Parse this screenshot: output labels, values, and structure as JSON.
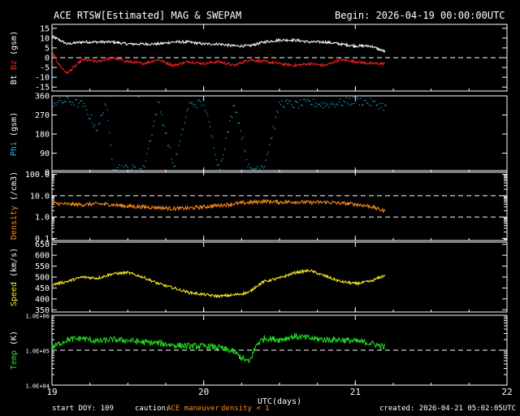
{
  "header": {
    "title": "ACE RTSW[Estimated] MAG & SWEPAM",
    "begin": "Begin: 2026-04-19 00:00:00UTC"
  },
  "footer": {
    "start_doy": "start DOY: 109",
    "caution_label": "caution:",
    "maneuver": "ACE maneuver",
    "density_note": "density < 1",
    "created": "created: 2026-04-21 05:02:05UTC"
  },
  "colors": {
    "bt": "#ffffff",
    "bz": "#ff2020",
    "phi": "#20b8e8",
    "density": "#ff8c1a",
    "speed": "#ffee22",
    "temp": "#22dd22",
    "frame": "#ffffff"
  },
  "chart_data": [
    {
      "type": "line",
      "title": "ACE RTSW[Estimated] MAG & SWEPAM",
      "ylabel": "Bt Bz (gsm)",
      "ylim": [
        -17,
        17
      ],
      "yticks": [
        15,
        10,
        5,
        0,
        -5,
        -10,
        -15
      ],
      "ytick_labels": [
        "15",
        "10",
        "5",
        "0",
        "-5",
        "-10",
        "-15"
      ],
      "ref_lines": [
        0
      ],
      "series": [
        {
          "name": "Bt",
          "x": [
            19.0,
            19.05,
            19.1,
            19.2,
            19.3,
            19.4,
            19.5,
            19.6,
            19.7,
            19.8,
            19.9,
            20.0,
            20.1,
            20.2,
            20.3,
            20.4,
            20.5,
            20.6,
            20.7,
            20.8,
            20.9,
            21.0,
            21.1,
            21.2
          ],
          "values": [
            11,
            9,
            7,
            8,
            8,
            8,
            7,
            7,
            7,
            8,
            8,
            7,
            7,
            6,
            6,
            8,
            9,
            9,
            8,
            8,
            7,
            6,
            6,
            3
          ]
        },
        {
          "name": "Bz",
          "x": [
            19.0,
            19.05,
            19.1,
            19.2,
            19.3,
            19.4,
            19.5,
            19.6,
            19.7,
            19.8,
            19.9,
            20.0,
            20.1,
            20.2,
            20.3,
            20.4,
            20.5,
            20.6,
            20.7,
            20.8,
            20.9,
            21.0,
            21.1,
            21.2
          ],
          "values": [
            3,
            -4,
            -8,
            -1,
            -2,
            0,
            -2,
            -3,
            -1,
            -4,
            -2,
            -3,
            -2,
            -4,
            -1,
            -2,
            -3,
            -4,
            -3,
            -4,
            -1,
            -2,
            -3,
            -3
          ]
        }
      ]
    },
    {
      "type": "scatter",
      "ylabel": "Phi (gsm)",
      "ylim": [
        0,
        360
      ],
      "yticks": [
        360,
        270,
        180,
        90,
        0
      ],
      "ytick_labels": [
        "360",
        "270",
        "180",
        "90",
        "0"
      ],
      "ref_lines": [],
      "series": [
        {
          "name": "Phi",
          "x": [
            19.0,
            19.1,
            19.2,
            19.3,
            19.35,
            19.4,
            19.5,
            19.6,
            19.7,
            19.8,
            19.9,
            20.0,
            20.1,
            20.2,
            20.3,
            20.4,
            20.5,
            20.6,
            20.7,
            20.8,
            20.9,
            21.0,
            21.1,
            21.2
          ],
          "values": [
            330,
            340,
            320,
            200,
            340,
            30,
            20,
            15,
            330,
            25,
            320,
            330,
            15,
            330,
            10,
            40,
            330,
            320,
            330,
            320,
            330,
            340,
            330,
            310
          ]
        }
      ]
    },
    {
      "type": "line",
      "ylabel": "Density (/cm3)",
      "yscale": "log",
      "ylim": [
        0.08,
        150
      ],
      "yticks": [
        100.0,
        10.0,
        1.0,
        0.1
      ],
      "ytick_labels": [
        "100.0",
        "10.0",
        "1.0",
        "0.1"
      ],
      "ref_lines": [
        10,
        1
      ],
      "series": [
        {
          "name": "Density",
          "x": [
            19.0,
            19.1,
            19.2,
            19.3,
            19.4,
            19.5,
            19.6,
            19.7,
            19.8,
            19.9,
            20.0,
            20.1,
            20.2,
            20.3,
            20.4,
            20.5,
            20.6,
            20.7,
            20.8,
            20.9,
            21.0,
            21.1,
            21.2
          ],
          "values": [
            4.5,
            4.0,
            3.8,
            4.2,
            3.8,
            3.2,
            3.0,
            2.8,
            2.5,
            2.6,
            3.0,
            3.5,
            4.2,
            4.8,
            5.5,
            5.0,
            5.2,
            4.8,
            5.0,
            4.5,
            4.0,
            3.2,
            1.8
          ]
        }
      ]
    },
    {
      "type": "line",
      "ylabel": "Speed (km/s)",
      "ylim": [
        340,
        660
      ],
      "yticks": [
        650,
        600,
        550,
        500,
        450,
        400,
        350
      ],
      "ytick_labels": [
        "650",
        "600",
        "550",
        "500",
        "450",
        "400",
        "350"
      ],
      "ref_lines": [],
      "series": [
        {
          "name": "Speed",
          "x": [
            19.0,
            19.1,
            19.2,
            19.3,
            19.4,
            19.5,
            19.6,
            19.7,
            19.8,
            19.9,
            20.0,
            20.1,
            20.2,
            20.3,
            20.35,
            20.4,
            20.5,
            20.6,
            20.7,
            20.8,
            20.9,
            21.0,
            21.1,
            21.2
          ],
          "values": [
            465,
            480,
            500,
            495,
            515,
            520,
            500,
            470,
            450,
            430,
            420,
            412,
            418,
            430,
            460,
            480,
            495,
            520,
            530,
            505,
            480,
            470,
            480,
            510
          ]
        }
      ]
    },
    {
      "type": "line",
      "ylabel": "Temp (K)",
      "yscale": "log",
      "ylim": [
        10000,
        1000000
      ],
      "yticks": [
        1000000,
        100000,
        10000
      ],
      "ytick_labels": [
        "1.0E+06",
        "1.0E+05",
        "1.0E+04"
      ],
      "ref_lines": [
        100000
      ],
      "series": [
        {
          "name": "Temp",
          "x": [
            19.0,
            19.1,
            19.2,
            19.3,
            19.4,
            19.5,
            19.6,
            19.7,
            19.8,
            19.9,
            20.0,
            20.1,
            20.2,
            20.25,
            20.3,
            20.35,
            20.4,
            20.5,
            20.6,
            20.7,
            20.8,
            20.9,
            21.0,
            21.1,
            21.2
          ],
          "values": [
            120000,
            200000,
            220000,
            180000,
            200000,
            190000,
            170000,
            160000,
            140000,
            130000,
            130000,
            120000,
            90000,
            60000,
            45000,
            150000,
            220000,
            200000,
            250000,
            220000,
            200000,
            200000,
            180000,
            160000,
            120000
          ]
        }
      ]
    }
  ],
  "x_axis": {
    "label": "UTC(days)",
    "xlim": [
      19,
      22
    ],
    "ticks": [
      19,
      20,
      21,
      22
    ],
    "tick_labels": [
      "19",
      "20",
      "21",
      "22"
    ]
  }
}
